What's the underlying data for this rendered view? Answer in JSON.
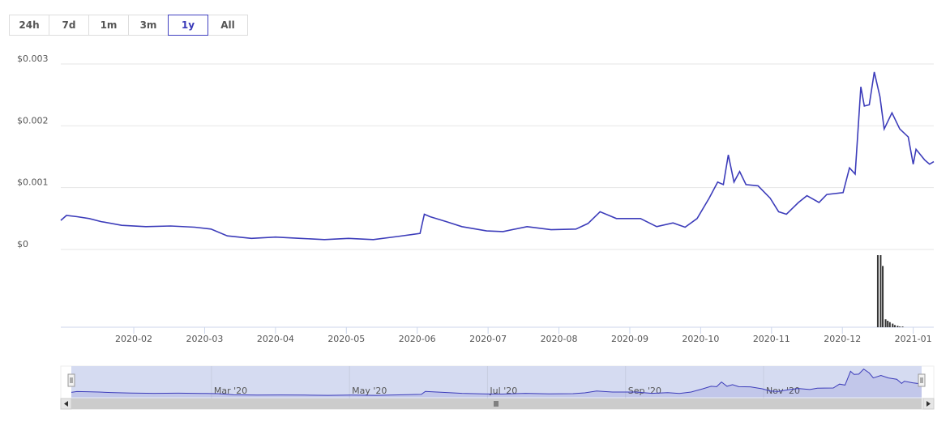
{
  "range_buttons": [
    "24h",
    "7d",
    "1m",
    "3m",
    "1y",
    "All"
  ],
  "active_range": "1y",
  "chart_data": {
    "type": "line",
    "xlim": [
      -0.03,
      12.29
    ],
    "xticks": [
      {
        "value": 1,
        "label": "2020-02"
      },
      {
        "value": 2,
        "label": "2020-03"
      },
      {
        "value": 3,
        "label": "2020-04"
      },
      {
        "value": 4,
        "label": "2020-05"
      },
      {
        "value": 5,
        "label": "2020-06"
      },
      {
        "value": 6,
        "label": "2020-07"
      },
      {
        "value": 7,
        "label": "2020-08"
      },
      {
        "value": 8,
        "label": "2020-09"
      },
      {
        "value": 9,
        "label": "2020-10"
      },
      {
        "value": 10,
        "label": "2020-11"
      },
      {
        "value": 11,
        "label": "2020-12"
      },
      {
        "value": 12,
        "label": "2021-01"
      }
    ],
    "ylim": [
      0,
      0.003
    ],
    "yticks": [
      {
        "value": 0,
        "label": "$0"
      },
      {
        "value": 0.001,
        "label": "$0.001"
      },
      {
        "value": 0.002,
        "label": "$0.002"
      },
      {
        "value": 0.003,
        "label": "$0.003"
      }
    ],
    "y2lim": [
      0,
      100
    ],
    "grid": true,
    "series": [
      {
        "type": "line",
        "color": "#3c3cba",
        "x": [
          -0.03,
          0.05,
          0.2,
          0.37,
          0.54,
          0.83,
          1.17,
          1.52,
          1.86,
          2.09,
          2.32,
          2.66,
          3.0,
          3.35,
          3.69,
          4.03,
          4.38,
          4.72,
          5.04,
          5.1,
          5.18,
          5.41,
          5.63,
          5.98,
          6.21,
          6.55,
          6.89,
          7.24,
          7.41,
          7.58,
          7.81,
          8.15,
          8.38,
          8.61,
          8.78,
          8.95,
          9.12,
          9.24,
          9.32,
          9.39,
          9.47,
          9.55,
          9.64,
          9.81,
          9.98,
          10.1,
          10.21,
          10.38,
          10.5,
          10.67,
          10.78,
          11.01,
          11.1,
          11.18,
          11.26,
          11.31,
          11.38,
          11.45,
          11.53,
          11.59,
          11.7,
          11.81,
          11.93,
          12.0,
          12.04,
          12.16,
          12.23,
          12.29
        ],
        "values": [
          0.00047,
          0.00055,
          0.00053,
          0.0005,
          0.00045,
          0.00039,
          0.00037,
          0.00038,
          0.00036,
          0.00033,
          0.00022,
          0.00018,
          0.0002,
          0.00018,
          0.00016,
          0.00018,
          0.00016,
          0.00021,
          0.00026,
          0.00057,
          0.00053,
          0.00045,
          0.00037,
          0.0003,
          0.00029,
          0.00037,
          0.00032,
          0.00033,
          0.00042,
          0.00061,
          0.0005,
          0.0005,
          0.00037,
          0.00043,
          0.00036,
          0.0005,
          0.00083,
          0.00109,
          0.00105,
          0.00153,
          0.00109,
          0.00126,
          0.00105,
          0.00103,
          0.00083,
          0.00061,
          0.00057,
          0.00076,
          0.00087,
          0.00076,
          0.00089,
          0.00092,
          0.00132,
          0.00122,
          0.00263,
          0.00232,
          0.00234,
          0.00287,
          0.00247,
          0.00195,
          0.00221,
          0.00195,
          0.00182,
          0.00138,
          0.00162,
          0.00145,
          0.00138,
          0.00142
        ]
      },
      {
        "type": "bar",
        "axis": "y2",
        "color": "#333333",
        "x": [
          11.5,
          11.54,
          11.57,
          11.61,
          11.64,
          11.67,
          11.71,
          11.74,
          11.78,
          11.81,
          11.85
        ],
        "values": [
          100,
          100,
          85,
          11,
          9,
          7,
          5,
          3,
          2,
          1,
          1
        ]
      }
    ],
    "navigator": {
      "xticks": [
        {
          "value": 2,
          "label": "Mar '20"
        },
        {
          "value": 4,
          "label": "May '20"
        },
        {
          "value": 6,
          "label": "Jul '20"
        },
        {
          "value": 8,
          "label": "Sep '20"
        },
        {
          "value": 10,
          "label": "Nov '20"
        }
      ]
    }
  }
}
